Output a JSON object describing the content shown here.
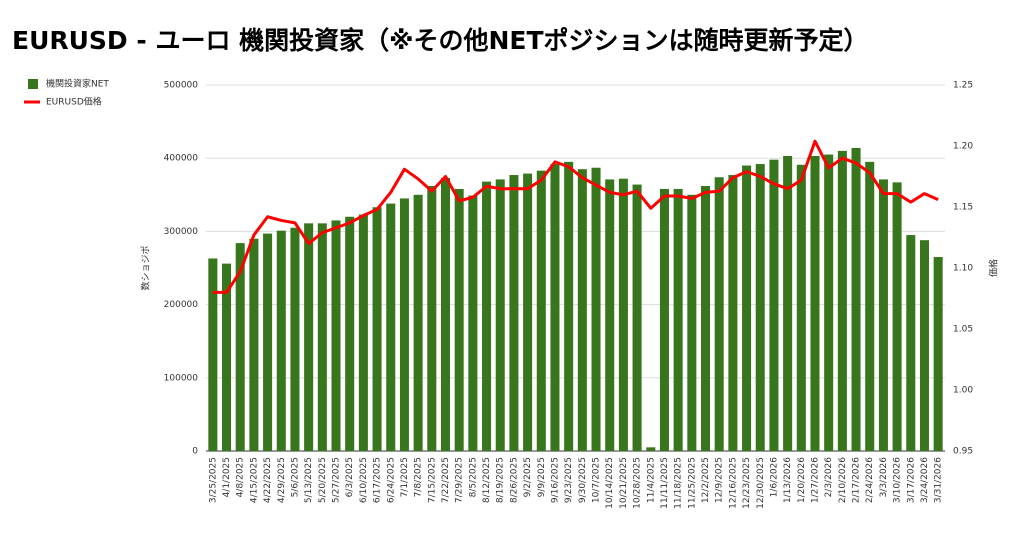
{
  "chart_data": {
    "type": "bar_line",
    "title": "EURUSD - ユーロ 機関投資家（※その他NETポジションは随時更新予定）",
    "y_label": "数ショジポ",
    "y2_label": "価格",
    "categories": [
      "3/25/2025",
      "4/1/2025",
      "4/8/2025",
      "4/15/2025",
      "4/22/2025",
      "4/29/2025",
      "5/6/2025",
      "5/13/2025",
      "5/20/2025",
      "5/27/2025",
      "6/3/2025",
      "6/10/2025",
      "6/17/2025",
      "6/24/2025",
      "7/1/2025",
      "7/8/2025",
      "7/15/2025",
      "7/22/2025",
      "7/29/2025",
      "8/5/2025",
      "8/12/2025",
      "8/19/2025",
      "8/26/2025",
      "9/2/2025",
      "9/9/2025",
      "9/16/2025",
      "9/23/2025",
      "9/30/2025",
      "10/7/2025",
      "10/14/2025",
      "10/21/2025",
      "10/28/2025",
      "11/4/2025",
      "11/11/2025",
      "11/18/2025",
      "11/25/2025",
      "12/2/2025",
      "12/9/2025",
      "12/16/2025",
      "12/23/2025",
      "12/30/2025",
      "1/6/2026",
      "1/13/2026",
      "1/20/2026",
      "1/27/2026",
      "2/3/2026",
      "2/10/2026",
      "2/17/2026",
      "2/24/2026",
      "3/3/2026",
      "3/10/2026",
      "3/17/2026",
      "3/24/2026",
      "3/31/2026"
    ],
    "series": [
      {
        "name": "機関投資家NET",
        "color": "#38761d",
        "type": "bar",
        "values": [
          263000,
          256000,
          284000,
          290000,
          297000,
          301000,
          305000,
          311000,
          311000,
          315000,
          320000,
          323000,
          333000,
          338000,
          345000,
          350000,
          362000,
          373000,
          358000,
          349000,
          368000,
          371000,
          377000,
          379000,
          383000,
          392000,
          395000,
          385000,
          387000,
          371000,
          372000,
          364000,
          5000,
          358000,
          358000,
          350000,
          362000,
          374000,
          377000,
          390000,
          392000,
          398000,
          403000,
          391000,
          403000,
          405000,
          410000,
          414000,
          395000,
          371000,
          367000,
          295000,
          288000,
          265000
        ]
      },
      {
        "name": "EURUSD価格",
        "color": "#ff0000",
        "type": "line",
        "axis": "y2",
        "values": [
          1.08,
          1.08,
          1.097,
          1.127,
          1.142,
          1.139,
          1.137,
          1.12,
          1.129,
          1.133,
          1.137,
          1.143,
          1.148,
          1.162,
          1.181,
          1.173,
          1.163,
          1.175,
          1.155,
          1.158,
          1.167,
          1.165,
          1.165,
          1.165,
          1.172,
          1.187,
          1.183,
          1.174,
          1.168,
          1.162,
          1.16,
          1.163,
          1.149,
          1.159,
          1.159,
          1.157,
          1.162,
          1.163,
          1.174,
          1.179,
          1.175,
          1.169,
          1.165,
          1.172,
          1.204,
          1.182,
          1.19,
          1.186,
          1.178,
          1.161,
          1.161,
          1.154,
          1.161,
          1.156
        ]
      }
    ],
    "ylim": [
      0,
      500000
    ],
    "yticks": [
      0,
      100000,
      200000,
      300000,
      400000,
      500000
    ],
    "y2lim": [
      0.95,
      1.25
    ],
    "y2ticks": [
      0.95,
      {
        "value": 1.0,
        "label": "1.00"
      },
      1.05,
      {
        "value": 1.1,
        "label": "1.10"
      },
      1.15,
      {
        "value": 1.2,
        "label": "1.20"
      },
      1.25
    ],
    "grid": true,
    "legend": "left"
  }
}
